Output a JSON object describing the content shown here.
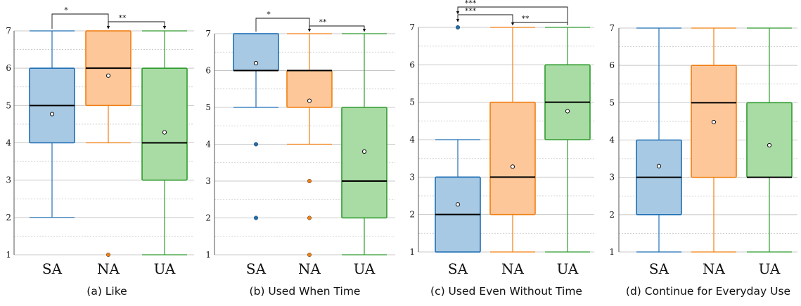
{
  "chart_data": [
    {
      "type": "box",
      "caption": "(a) Like",
      "categories": [
        "SA",
        "NA",
        "UA"
      ],
      "ylim": [
        1,
        7
      ],
      "yticks": [
        "1",
        "2",
        "3",
        "4",
        "5",
        "6",
        "7"
      ],
      "boxes": [
        {
          "name": "SA",
          "whisker_low": 2,
          "q1": 4,
          "median": 5,
          "q3": 6,
          "whisker_high": 7,
          "mean": 4.77,
          "outliers": []
        },
        {
          "name": "NA",
          "whisker_low": 4,
          "q1": 5,
          "median": 6,
          "q3": 7,
          "whisker_high": 7,
          "mean": 5.8,
          "outliers": [
            1
          ]
        },
        {
          "name": "UA",
          "whisker_low": 1,
          "q1": 3,
          "median": 4,
          "q3": 6,
          "whisker_high": 7,
          "mean": 4.28,
          "outliers": []
        }
      ],
      "significance": [
        {
          "from": "SA",
          "to": "NA",
          "label": "*"
        },
        {
          "from": "NA",
          "to": "UA",
          "label": "**"
        }
      ]
    },
    {
      "type": "box",
      "caption": "(b) Used When Time",
      "categories": [
        "SA",
        "NA",
        "UA"
      ],
      "ylim": [
        1,
        7
      ],
      "yticks": [
        "1",
        "2",
        "3",
        "4",
        "5",
        "6",
        "7"
      ],
      "boxes": [
        {
          "name": "SA",
          "whisker_low": 5,
          "q1": 6,
          "median": 6,
          "q3": 7,
          "whisker_high": 7,
          "mean": 6.2,
          "outliers": [
            4,
            2
          ]
        },
        {
          "name": "NA",
          "whisker_low": 4,
          "q1": 5,
          "median": 6,
          "q3": 6,
          "whisker_high": 7,
          "mean": 5.18,
          "outliers": [
            3,
            2,
            1
          ]
        },
        {
          "name": "UA",
          "whisker_low": 1,
          "q1": 2,
          "median": 3,
          "q3": 5,
          "whisker_high": 7,
          "mean": 3.8,
          "outliers": []
        }
      ],
      "significance": [
        {
          "from": "SA",
          "to": "NA",
          "label": "*"
        },
        {
          "from": "NA",
          "to": "UA",
          "label": "**"
        }
      ]
    },
    {
      "type": "box",
      "caption": "(c) Used Even Without Time",
      "categories": [
        "SA",
        "NA",
        "UA"
      ],
      "ylim": [
        1,
        7
      ],
      "yticks": [
        "1",
        "2",
        "3",
        "4",
        "5",
        "6",
        "7"
      ],
      "boxes": [
        {
          "name": "SA",
          "whisker_low": 1,
          "q1": 1,
          "median": 2,
          "q3": 3,
          "whisker_high": 4,
          "mean": 2.27,
          "outliers": [
            7
          ]
        },
        {
          "name": "NA",
          "whisker_low": 1,
          "q1": 2,
          "median": 3,
          "q3": 5,
          "whisker_high": 7,
          "mean": 3.28,
          "outliers": []
        },
        {
          "name": "UA",
          "whisker_low": 1,
          "q1": 4,
          "median": 5,
          "q3": 6,
          "whisker_high": 7,
          "mean": 4.76,
          "outliers": []
        }
      ],
      "significance": [
        {
          "from": "UA",
          "to": "SA",
          "label": "***"
        },
        {
          "from": "NA",
          "to": "SA",
          "label": "***"
        },
        {
          "from": "UA",
          "to": "NA",
          "label": "**"
        }
      ]
    },
    {
      "type": "box",
      "caption": "(d) Continue for Everyday Use",
      "categories": [
        "SA",
        "NA",
        "UA"
      ],
      "ylim": [
        1,
        7
      ],
      "yticks": [
        "1",
        "2",
        "3",
        "4",
        "5",
        "6",
        "7"
      ],
      "boxes": [
        {
          "name": "SA",
          "whisker_low": 1,
          "q1": 2,
          "median": 3,
          "q3": 4,
          "whisker_high": 7,
          "mean": 3.3,
          "outliers": []
        },
        {
          "name": "NA",
          "whisker_low": 1,
          "q1": 3,
          "median": 5,
          "q3": 6,
          "whisker_high": 7,
          "mean": 4.48,
          "outliers": []
        },
        {
          "name": "UA",
          "whisker_low": 1,
          "q1": 3,
          "median": 3,
          "q3": 5,
          "whisker_high": 7,
          "mean": 3.86,
          "outliers": []
        }
      ],
      "significance": []
    }
  ],
  "colors": {
    "SA": {
      "stroke": "#1f6fb4",
      "fill": "#a8c9e3"
    },
    "NA": {
      "stroke": "#f07f12",
      "fill": "#fdc79a"
    },
    "UA": {
      "stroke": "#2f9b2f",
      "fill": "#a9dba4"
    },
    "median": "#000000",
    "grid": "#c8c8c8"
  }
}
